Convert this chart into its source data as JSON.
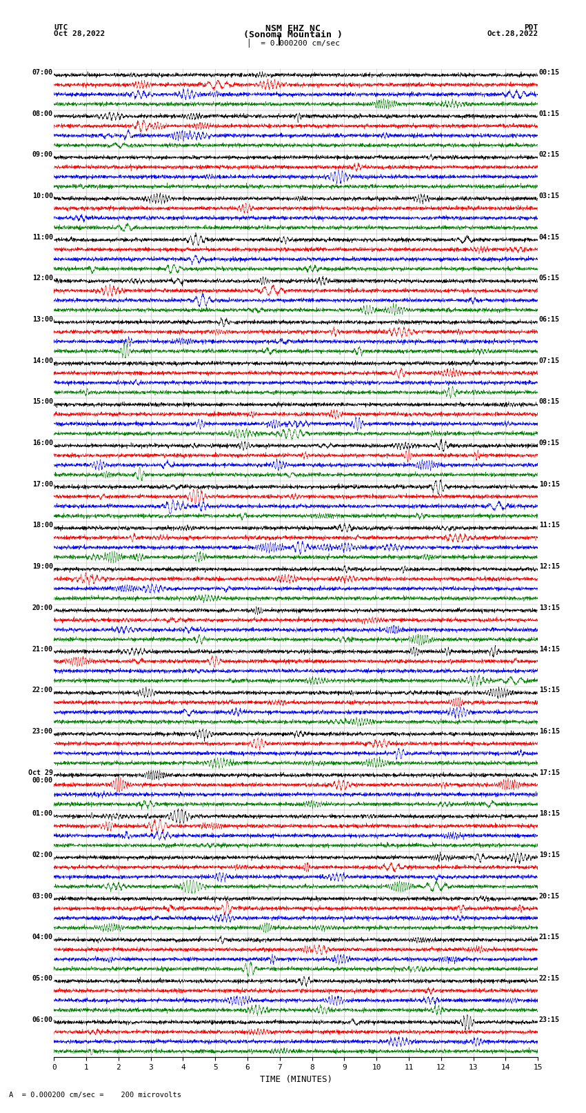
{
  "title_line1": "NSM EHZ NC",
  "title_line2": "(Sonoma Mountain )",
  "scale_label": "= 0.000200 cm/sec",
  "left_header": "UTC",
  "left_date": "Oct 28,2022",
  "right_header": "PDT",
  "right_date": "Oct.28,2022",
  "xlabel": "TIME (MINUTES)",
  "footer": "A  = 0.000200 cm/sec =    200 microvolts",
  "xlim": [
    0,
    15
  ],
  "xticks": [
    0,
    1,
    2,
    3,
    4,
    5,
    6,
    7,
    8,
    9,
    10,
    11,
    12,
    13,
    14,
    15
  ],
  "utc_labels": [
    "07:00",
    "08:00",
    "09:00",
    "10:00",
    "11:00",
    "12:00",
    "13:00",
    "14:00",
    "15:00",
    "16:00",
    "17:00",
    "18:00",
    "19:00",
    "20:00",
    "21:00",
    "22:00",
    "23:00",
    "Oct 29\n00:00",
    "01:00",
    "02:00",
    "03:00",
    "04:00",
    "05:00",
    "06:00"
  ],
  "pdt_labels": [
    "00:15",
    "01:15",
    "02:15",
    "03:15",
    "04:15",
    "05:15",
    "06:15",
    "07:15",
    "08:15",
    "09:15",
    "10:15",
    "11:15",
    "12:15",
    "13:15",
    "14:15",
    "15:15",
    "16:15",
    "17:15",
    "18:15",
    "19:15",
    "20:15",
    "21:15",
    "22:15",
    "23:15"
  ],
  "n_rows": 24,
  "traces_per_row": 4,
  "trace_colors": [
    "black",
    "red",
    "blue",
    "green"
  ],
  "bg_color": "#ffffff",
  "plot_bg": "#ffffff",
  "grid_color": "#888888",
  "noise_seed": 42,
  "vertical_lines_x": [
    1,
    2,
    3,
    4,
    5,
    6,
    7,
    8,
    9,
    10,
    11,
    12,
    13,
    14
  ]
}
